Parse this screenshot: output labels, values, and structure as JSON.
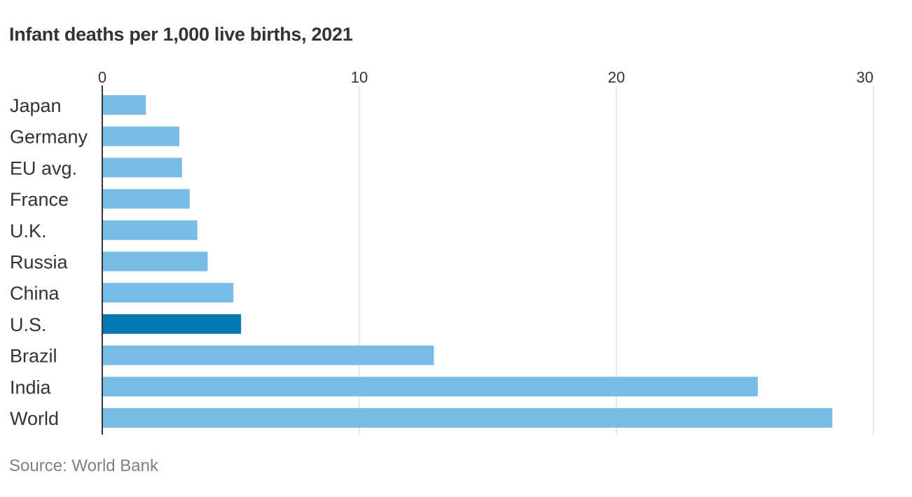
{
  "chart_data": {
    "type": "bar",
    "orientation": "horizontal",
    "title": "Infant deaths per 1,000 live births, 2021",
    "source": "Source: World Bank",
    "xlabel": "",
    "ylabel": "",
    "xlim": [
      0,
      30
    ],
    "xticks": [
      {
        "value": 0,
        "label": "0"
      },
      {
        "value": 10,
        "label": "10"
      },
      {
        "value": 20,
        "label": "20"
      },
      {
        "value": 30,
        "label": "30"
      }
    ],
    "grid": true,
    "categories": [
      "Japan",
      "Germany",
      "EU avg.",
      "France",
      "U.K.",
      "Russia",
      "China",
      "U.S.",
      "Brazil",
      "India",
      "World"
    ],
    "values": [
      1.7,
      3.0,
      3.1,
      3.4,
      3.7,
      4.1,
      5.1,
      5.4,
      12.9,
      25.5,
      28.4
    ],
    "highlight": "U.S.",
    "colors": {
      "bar": "#78bde6",
      "highlight": "#0079b2",
      "grid": "#dddddd",
      "axis": "#333333"
    }
  }
}
